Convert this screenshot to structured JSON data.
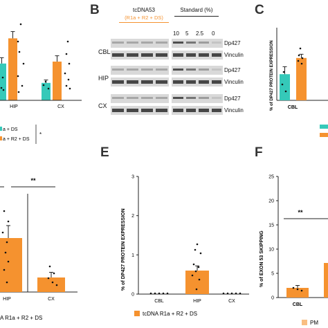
{
  "colors": {
    "teal": "#35c9b9",
    "orange": "#f5922f",
    "black": "#111111"
  },
  "panel_b": {
    "letter": "B",
    "group_header": "tcDNA53",
    "group_sub": "(R1a + R2 + DS)",
    "standard_header": "Standard (%)",
    "standard_ticks": [
      "10",
      "5",
      "2.5",
      "0"
    ],
    "rows": [
      {
        "region": "CBL",
        "band1": "Dp427",
        "band2": "Vinculin"
      },
      {
        "region": "HIP",
        "band1": "Dp427",
        "band2": "Vinculin"
      },
      {
        "region": "CX",
        "band1": "Dp427",
        "band2": "Vinculin"
      }
    ]
  },
  "panel_a_fragment": {
    "legend_line1": "a + DS",
    "legend_line2": "a + R2 + DS",
    "legend_star": "*"
  },
  "panel_c": {
    "letter": "C",
    "ylabel": "% of DP427 PROTEIN EXPRESSION"
  },
  "panel_d_fragment": {
    "sig": "**",
    "legend": "A R1a + R2 + DS"
  },
  "panel_e": {
    "letter": "E",
    "ylabel": "% of DP427 PROTEIN EXPRESSION",
    "legend": "tcDNA R1a + R2 + DS"
  },
  "panel_f": {
    "letter": "F",
    "ylabel": "% of EXON 53 SKIPPING",
    "sig": "**",
    "legend": "PM"
  },
  "chart_data": [
    {
      "id": "panel-a-fragment",
      "type": "bar",
      "categories": [
        "HIP",
        "CX"
      ],
      "series": [
        {
          "values": [
            1.9,
            0.9
          ],
          "errors": [
            0.3,
            0.15
          ]
        },
        {
          "values": [
            3.2,
            2.0
          ],
          "errors": [
            0.35,
            0.3
          ]
        }
      ]
    },
    {
      "id": "panel-c",
      "type": "bar",
      "title": "",
      "xlabel": "",
      "ylabel": "% of DP427 PROTEIN EXPRESSION",
      "categories": [
        "CBL"
      ],
      "series": [
        {
          "values": [
            2.1
          ],
          "errors": [
            0.6
          ]
        },
        {
          "values": [
            3.4
          ],
          "errors": [
            0.3
          ]
        }
      ]
    },
    {
      "id": "panel-d-fragment",
      "type": "bar",
      "categories": [
        "HIP",
        "CX"
      ],
      "series": [
        {
          "values": [
            1.3,
            0.35
          ],
          "errors": [
            0.3,
            0.1
          ]
        }
      ]
    },
    {
      "id": "panel-e",
      "type": "bar",
      "title": "",
      "xlabel": "",
      "ylabel": "% of DP427 PROTEIN EXPRESSION",
      "categories": [
        "CBL",
        "HIP",
        "CX"
      ],
      "series": [
        {
          "name": "tcDNA R1a + R2 + DS",
          "values": [
            0,
            0.6,
            0
          ],
          "errors": [
            0,
            0.12,
            0
          ]
        }
      ],
      "ylim": [
        0,
        3
      ],
      "yticks": [
        "0",
        "1",
        "2",
        "3"
      ],
      "grid": false
    },
    {
      "id": "panel-f",
      "type": "bar",
      "title": "",
      "xlabel": "",
      "ylabel": "% of EXON 53 SKIPPING",
      "categories": [
        "CBL"
      ],
      "series": [
        {
          "values": [
            2
          ],
          "errors": [
            0.5
          ]
        }
      ],
      "ylim": [
        0,
        25
      ],
      "yticks": [
        "0",
        "5",
        "10",
        "15",
        "20",
        "25"
      ],
      "grid": false
    }
  ]
}
